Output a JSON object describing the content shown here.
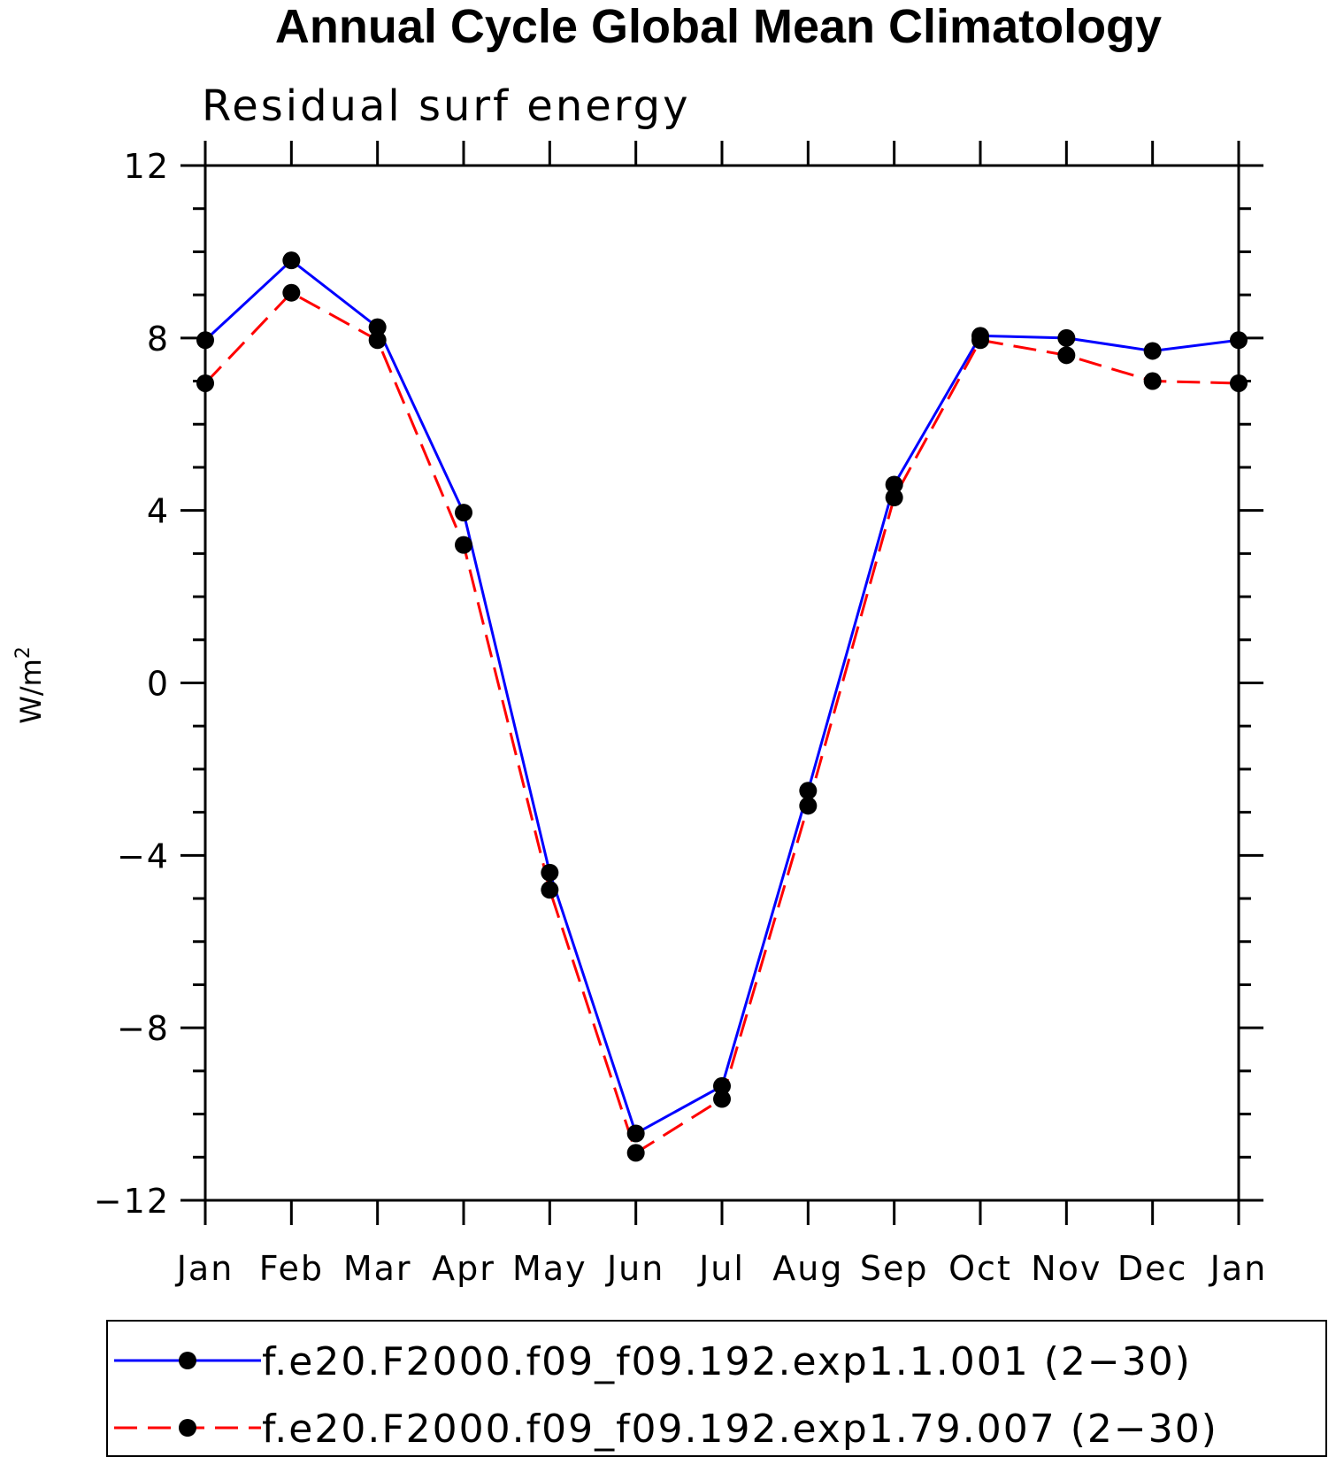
{
  "chart_data": {
    "type": "line",
    "title": "Annual Cycle Global Mean Climatology",
    "subtitle": "Residual surf energy",
    "ylabel": "W/m",
    "ylabel_sup": "2",
    "categories": [
      "Jan",
      "Feb",
      "Mar",
      "Apr",
      "May",
      "Jun",
      "Jul",
      "Aug",
      "Sep",
      "Oct",
      "Nov",
      "Dec",
      "Jan"
    ],
    "ylim": [
      -12,
      12
    ],
    "yticks": [
      12,
      8,
      4,
      0,
      -4,
      -8,
      -12
    ],
    "ytick_labels": [
      "12",
      "8",
      "4",
      "0",
      "−4",
      "−8",
      "−12"
    ],
    "series": [
      {
        "name": "f.e20.F2000.f09_f09.192.exp1.1.001 (2−30)",
        "color": "#0000ff",
        "dash": "solid",
        "values": [
          7.95,
          9.8,
          8.25,
          3.95,
          -4.4,
          -10.45,
          -9.35,
          -2.5,
          4.6,
          8.05,
          8.0,
          7.7,
          7.95
        ]
      },
      {
        "name": "f.e20.F2000.f09_f09.192.exp1.79.007 (2−30)",
        "color": "#ff0000",
        "dash": "dashed",
        "values": [
          6.95,
          9.05,
          7.95,
          3.2,
          -4.8,
          -10.9,
          -9.65,
          -2.85,
          4.3,
          7.95,
          7.6,
          7.0,
          6.95
        ]
      }
    ],
    "grid": false,
    "legend_position": "bottom",
    "marker": "filled-circle",
    "marker_color": "#000000"
  }
}
